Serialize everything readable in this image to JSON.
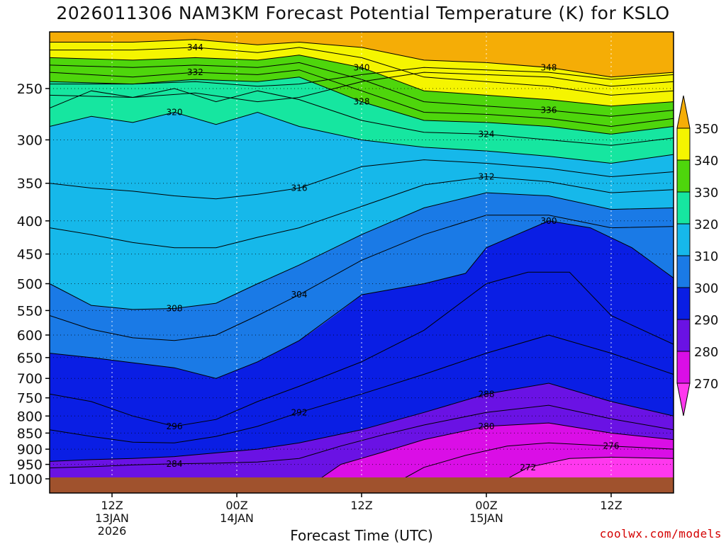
{
  "chart_data": {
    "type": "heatmap",
    "title": "2026011306 NAM3KM Forecast Potential Temperature (K) for KSLO",
    "xlabel": "Forecast Time (UTC)",
    "ylabel": "",
    "y_ticks": [
      "250",
      "300",
      "350",
      "400",
      "450",
      "500",
      "550",
      "600",
      "650",
      "700",
      "750",
      "800",
      "850",
      "900",
      "950",
      "1000"
    ],
    "y_range_hPa": [
      200,
      1025
    ],
    "x_range_hours": [
      0,
      60
    ],
    "x_ticks": [
      {
        "hour": 6,
        "lines": [
          "12Z",
          "13JAN",
          "2026"
        ]
      },
      {
        "hour": 18,
        "lines": [
          "00Z",
          "14JAN"
        ]
      },
      {
        "hour": 30,
        "lines": [
          "12Z"
        ]
      },
      {
        "hour": 42,
        "lines": [
          "00Z",
          "15JAN"
        ]
      },
      {
        "hour": 54,
        "lines": [
          "12Z"
        ]
      }
    ],
    "colorbar": {
      "ticks": [
        "350",
        "340",
        "330",
        "320",
        "310",
        "300",
        "290",
        "280",
        "270"
      ],
      "bins": [
        {
          "range": [
            340,
            350
          ],
          "color": "#f5f500"
        },
        {
          "range": [
            330,
            340
          ],
          "color": "#4ed60c"
        },
        {
          "range": [
            320,
            330
          ],
          "color": "#16e6a0"
        },
        {
          "range": [
            310,
            320
          ],
          "color": "#16b8ea"
        },
        {
          "range": [
            300,
            310
          ],
          "color": "#1a7ae6"
        },
        {
          "range": [
            290,
            300
          ],
          "color": "#0a1ee4"
        },
        {
          "range": [
            280,
            290
          ],
          "color": "#6a12e4"
        },
        {
          "range": [
            270,
            280
          ],
          "color": "#da0ee6"
        },
        {
          "range": [
            260,
            270
          ],
          "color": "#ff38ee"
        },
        {
          "range": [
            350,
            370
          ],
          "color": "#f5ad06"
        }
      ],
      "over_color": "#f5ad06",
      "under_color": "#ff38ee"
    },
    "ground_color": "#a0522d",
    "series": [
      {
        "name": "theta_256",
        "label": "",
        "points": [
          [
            0,
            246
          ],
          [
            8,
            246
          ],
          [
            14,
            244
          ],
          [
            20,
            248
          ],
          [
            24,
            246
          ],
          [
            30,
            238
          ],
          [
            36,
            232
          ],
          [
            42,
            234
          ],
          [
            48,
            236
          ],
          [
            54,
            242
          ],
          [
            60,
            238
          ]
        ]
      },
      {
        "name": "theta_252",
        "label": "",
        "points": [
          [
            0,
            256
          ],
          [
            8,
            258
          ],
          [
            14,
            254
          ],
          [
            20,
            262
          ],
          [
            24,
            258
          ],
          [
            30,
            244
          ],
          [
            36,
            236
          ],
          [
            42,
            238
          ],
          [
            48,
            240
          ],
          [
            54,
            248
          ],
          [
            60,
            244
          ]
        ]
      },
      {
        "name": "theta_348",
        "label": "348",
        "points": [
          [
            0,
            212
          ],
          [
            8,
            212
          ],
          [
            14,
            210
          ],
          [
            20,
            214
          ],
          [
            24,
            212
          ],
          [
            30,
            216
          ],
          [
            36,
            226
          ],
          [
            42,
            228
          ],
          [
            48,
            232
          ],
          [
            54,
            240
          ],
          [
            60,
            236
          ]
        ]
      },
      {
        "name": "theta_344",
        "label": "344",
        "points": [
          [
            0,
            218
          ],
          [
            8,
            218
          ],
          [
            14,
            216
          ],
          [
            20,
            220
          ],
          [
            24,
            216
          ],
          [
            30,
            224
          ],
          [
            36,
            240
          ],
          [
            42,
            244
          ],
          [
            48,
            248
          ],
          [
            54,
            256
          ],
          [
            60,
            252
          ]
        ]
      },
      {
        "name": "theta_340",
        "label": "340",
        "points": [
          [
            0,
            224
          ],
          [
            8,
            226
          ],
          [
            14,
            224
          ],
          [
            20,
            226
          ],
          [
            24,
            222
          ],
          [
            30,
            232
          ],
          [
            36,
            252
          ],
          [
            42,
            256
          ],
          [
            48,
            260
          ],
          [
            54,
            266
          ],
          [
            60,
            262
          ]
        ]
      },
      {
        "name": "theta_336",
        "label": "336",
        "points": [
          [
            0,
            230
          ],
          [
            8,
            232
          ],
          [
            14,
            230
          ],
          [
            20,
            232
          ],
          [
            24,
            228
          ],
          [
            30,
            242
          ],
          [
            36,
            262
          ],
          [
            42,
            266
          ],
          [
            48,
            270
          ],
          [
            54,
            276
          ],
          [
            60,
            270
          ]
        ]
      },
      {
        "name": "theta_332",
        "label": "332",
        "points": [
          [
            0,
            236
          ],
          [
            8,
            240
          ],
          [
            14,
            236
          ],
          [
            20,
            238
          ],
          [
            24,
            234
          ],
          [
            30,
            252
          ],
          [
            36,
            272
          ],
          [
            42,
            274
          ],
          [
            48,
            278
          ],
          [
            54,
            286
          ],
          [
            60,
            278
          ]
        ]
      },
      {
        "name": "theta_328",
        "label": "328",
        "points": [
          [
            0,
            244
          ],
          [
            8,
            246
          ],
          [
            14,
            242
          ],
          [
            20,
            244
          ],
          [
            24,
            240
          ],
          [
            30,
            262
          ],
          [
            36,
            280
          ],
          [
            42,
            282
          ],
          [
            48,
            286
          ],
          [
            54,
            294
          ],
          [
            60,
            286
          ]
        ]
      },
      {
        "name": "theta_324",
        "label": "324",
        "points": [
          [
            0,
            268
          ],
          [
            4,
            252
          ],
          [
            8,
            258
          ],
          [
            12,
            250
          ],
          [
            16,
            262
          ],
          [
            20,
            252
          ],
          [
            24,
            260
          ],
          [
            30,
            280
          ],
          [
            36,
            292
          ],
          [
            42,
            294
          ],
          [
            48,
            300
          ],
          [
            54,
            306
          ],
          [
            60,
            298
          ]
        ]
      },
      {
        "name": "theta_320",
        "label": "320",
        "points": [
          [
            0,
            286
          ],
          [
            4,
            276
          ],
          [
            8,
            282
          ],
          [
            12,
            272
          ],
          [
            16,
            284
          ],
          [
            20,
            272
          ],
          [
            24,
            286
          ],
          [
            30,
            300
          ],
          [
            36,
            308
          ],
          [
            42,
            312
          ],
          [
            48,
            318
          ],
          [
            54,
            326
          ],
          [
            60,
            316
          ]
        ]
      },
      {
        "name": "theta_316",
        "label": "316",
        "points": [
          [
            0,
            350
          ],
          [
            4,
            356
          ],
          [
            8,
            360
          ],
          [
            12,
            366
          ],
          [
            16,
            370
          ],
          [
            20,
            364
          ],
          [
            24,
            356
          ],
          [
            30,
            330
          ],
          [
            36,
            322
          ],
          [
            42,
            326
          ],
          [
            48,
            332
          ],
          [
            54,
            342
          ],
          [
            60,
            336
          ]
        ]
      },
      {
        "name": "theta_312",
        "label": "312",
        "points": [
          [
            0,
            410
          ],
          [
            4,
            420
          ],
          [
            8,
            432
          ],
          [
            12,
            440
          ],
          [
            16,
            440
          ],
          [
            20,
            424
          ],
          [
            24,
            410
          ],
          [
            30,
            380
          ],
          [
            36,
            352
          ],
          [
            42,
            342
          ],
          [
            48,
            348
          ],
          [
            54,
            362
          ],
          [
            60,
            358
          ]
        ]
      },
      {
        "name": "theta_308",
        "label": "308",
        "points": [
          [
            0,
            500
          ],
          [
            4,
            540
          ],
          [
            8,
            548
          ],
          [
            12,
            546
          ],
          [
            16,
            536
          ],
          [
            20,
            500
          ],
          [
            24,
            468
          ],
          [
            30,
            420
          ],
          [
            36,
            382
          ],
          [
            42,
            362
          ],
          [
            48,
            366
          ],
          [
            54,
            384
          ],
          [
            60,
            382
          ]
        ]
      },
      {
        "name": "theta_304",
        "label": "304",
        "points": [
          [
            0,
            560
          ],
          [
            4,
            588
          ],
          [
            8,
            606
          ],
          [
            12,
            612
          ],
          [
            16,
            600
          ],
          [
            20,
            560
          ],
          [
            24,
            520
          ],
          [
            30,
            460
          ],
          [
            36,
            420
          ],
          [
            42,
            392
          ],
          [
            48,
            392
          ],
          [
            54,
            410
          ],
          [
            60,
            408
          ]
        ]
      },
      {
        "name": "theta_300",
        "label": "300",
        "points": [
          [
            0,
            640
          ],
          [
            4,
            650
          ],
          [
            8,
            662
          ],
          [
            12,
            674
          ],
          [
            16,
            700
          ],
          [
            20,
            660
          ],
          [
            24,
            612
          ],
          [
            30,
            520
          ],
          [
            36,
            500
          ],
          [
            40,
            482
          ],
          [
            42,
            440
          ],
          [
            48,
            400
          ],
          [
            52,
            410
          ],
          [
            56,
            440
          ],
          [
            60,
            490
          ]
        ]
      },
      {
        "name": "theta_296",
        "label": "296",
        "points": [
          [
            0,
            740
          ],
          [
            4,
            760
          ],
          [
            8,
            800
          ],
          [
            12,
            830
          ],
          [
            16,
            810
          ],
          [
            20,
            760
          ],
          [
            24,
            720
          ],
          [
            30,
            660
          ],
          [
            36,
            590
          ],
          [
            42,
            500
          ],
          [
            46,
            480
          ],
          [
            50,
            480
          ],
          [
            54,
            560
          ],
          [
            60,
            620
          ]
        ]
      },
      {
        "name": "theta_292",
        "label": "292",
        "points": [
          [
            0,
            840
          ],
          [
            4,
            860
          ],
          [
            8,
            878
          ],
          [
            12,
            880
          ],
          [
            16,
            860
          ],
          [
            20,
            830
          ],
          [
            24,
            790
          ],
          [
            30,
            740
          ],
          [
            36,
            690
          ],
          [
            42,
            640
          ],
          [
            48,
            600
          ],
          [
            54,
            640
          ],
          [
            60,
            690
          ]
        ]
      },
      {
        "name": "theta_288",
        "label": "288",
        "points": [
          [
            0,
            940
          ],
          [
            4,
            934
          ],
          [
            8,
            930
          ],
          [
            12,
            924
          ],
          [
            16,
            912
          ],
          [
            20,
            900
          ],
          [
            24,
            880
          ],
          [
            30,
            840
          ],
          [
            36,
            790
          ],
          [
            42,
            740
          ],
          [
            48,
            712
          ],
          [
            54,
            760
          ],
          [
            60,
            800
          ]
        ]
      },
      {
        "name": "theta_284",
        "label": "284",
        "points": [
          [
            0,
            962
          ],
          [
            4,
            958
          ],
          [
            8,
            952
          ],
          [
            12,
            948
          ],
          [
            16,
            946
          ],
          [
            20,
            942
          ],
          [
            24,
            930
          ],
          [
            28,
            890
          ],
          [
            32,
            856
          ],
          [
            36,
            826
          ],
          [
            42,
            790
          ],
          [
            48,
            770
          ],
          [
            54,
            808
          ],
          [
            60,
            840
          ]
        ]
      },
      {
        "name": "theta_280",
        "label": "280",
        "points": [
          [
            26,
            1000
          ],
          [
            28,
            950
          ],
          [
            32,
            910
          ],
          [
            36,
            870
          ],
          [
            42,
            830
          ],
          [
            48,
            820
          ],
          [
            54,
            850
          ],
          [
            60,
            870
          ]
        ]
      },
      {
        "name": "theta_276",
        "label": "276",
        "points": [
          [
            34,
            1000
          ],
          [
            36,
            960
          ],
          [
            40,
            920
          ],
          [
            44,
            890
          ],
          [
            48,
            880
          ],
          [
            54,
            890
          ],
          [
            60,
            900
          ]
        ]
      },
      {
        "name": "theta_272",
        "label": "272",
        "points": [
          [
            44,
            1000
          ],
          [
            46,
            960
          ],
          [
            50,
            930
          ],
          [
            54,
            926
          ],
          [
            60,
            930
          ]
        ]
      }
    ]
  }
}
